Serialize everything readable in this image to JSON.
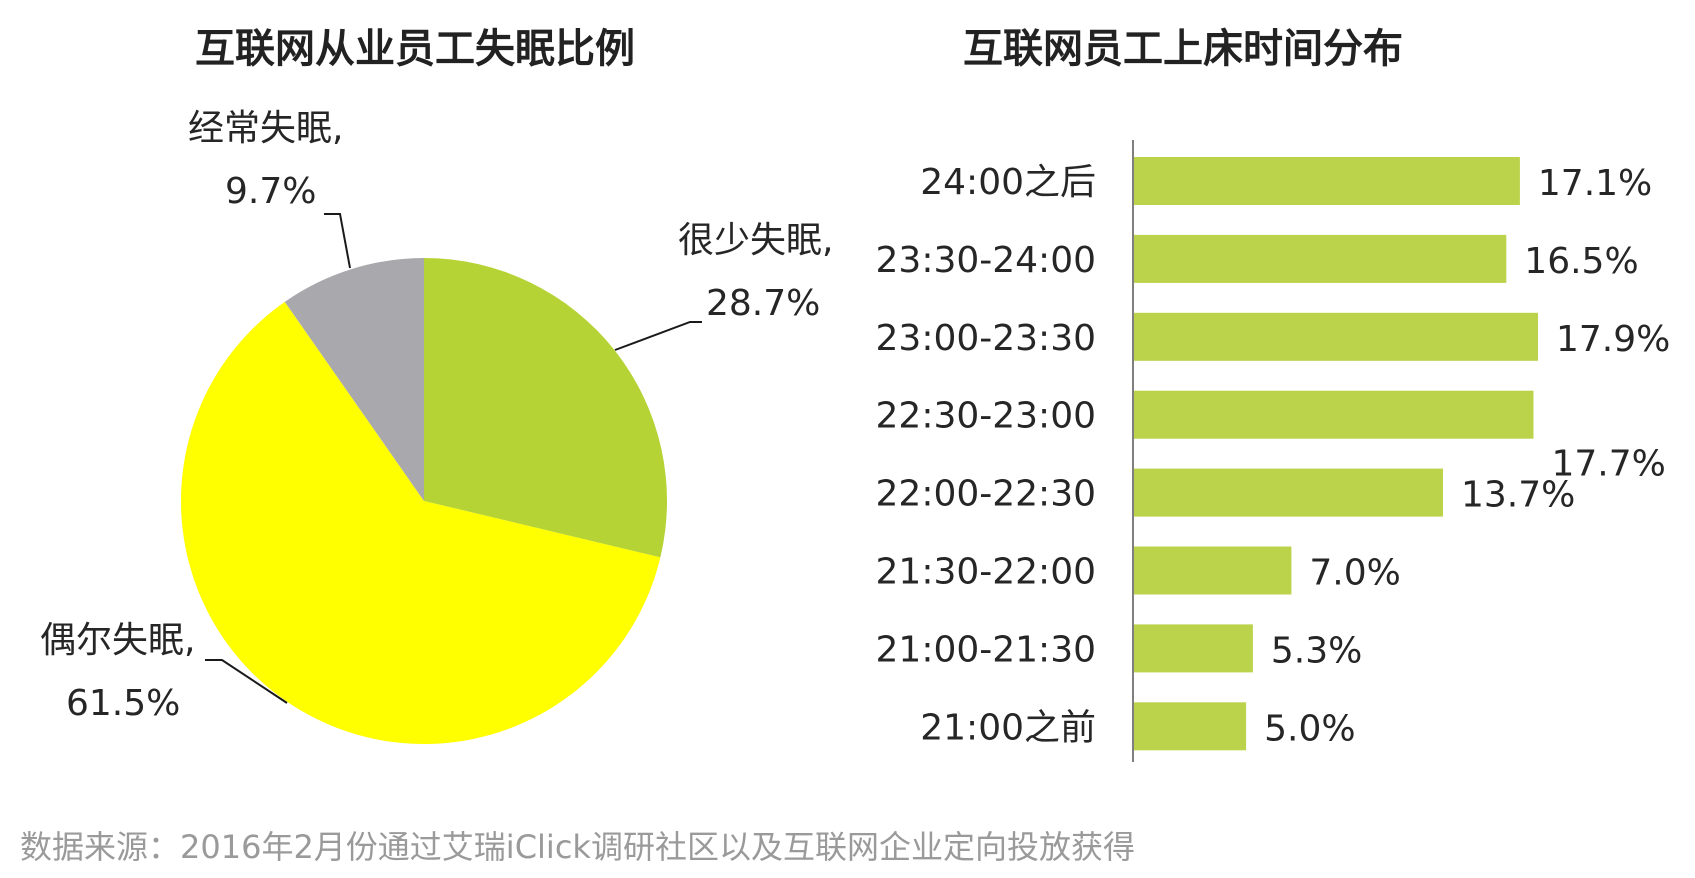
{
  "source_note": "数据来源：2016年2月份通过艾瑞iClick调研社区以及互联网企业定向投放获得",
  "colors": {
    "green": "#b5d334",
    "yellow": "#ffff00",
    "gray": "#a9a8ad",
    "bar": "#bbd34a",
    "axis": "#7f7f7f",
    "leader": "#1a1a1a"
  },
  "chart_data": [
    {
      "type": "pie",
      "title": "互联网从业员工失眠比例",
      "slices": [
        {
          "name": "很少失眠,",
          "value": 28.7,
          "value_label": "28.7%",
          "color": "#b5d334"
        },
        {
          "name": "偶尔失眠,",
          "value": 61.5,
          "value_label": "61.5%",
          "color": "#ffff00"
        },
        {
          "name": "经常失眠,",
          "value": 9.7,
          "value_label": "9.7%",
          "color": "#a9a8ad"
        }
      ]
    },
    {
      "type": "bar",
      "orientation": "horizontal",
      "title": "互联网员工上床时间分布",
      "categories": [
        "24:00之后",
        "23:30-24:00",
        "23:00-23:30",
        "22:30-23:00",
        "22:00-22:30",
        "21:30-22:00",
        "21:00-21:30",
        "21:00之前"
      ],
      "values": [
        17.1,
        16.5,
        17.9,
        17.7,
        13.7,
        7.0,
        5.3,
        5.0
      ],
      "value_labels": [
        "17.1%",
        "16.5%",
        "17.9%",
        "17.7%",
        "13.7%",
        "7.0%",
        "5.3%",
        "5.0%"
      ],
      "xlim": [
        0,
        20
      ],
      "grid": false,
      "legend": "none"
    }
  ]
}
